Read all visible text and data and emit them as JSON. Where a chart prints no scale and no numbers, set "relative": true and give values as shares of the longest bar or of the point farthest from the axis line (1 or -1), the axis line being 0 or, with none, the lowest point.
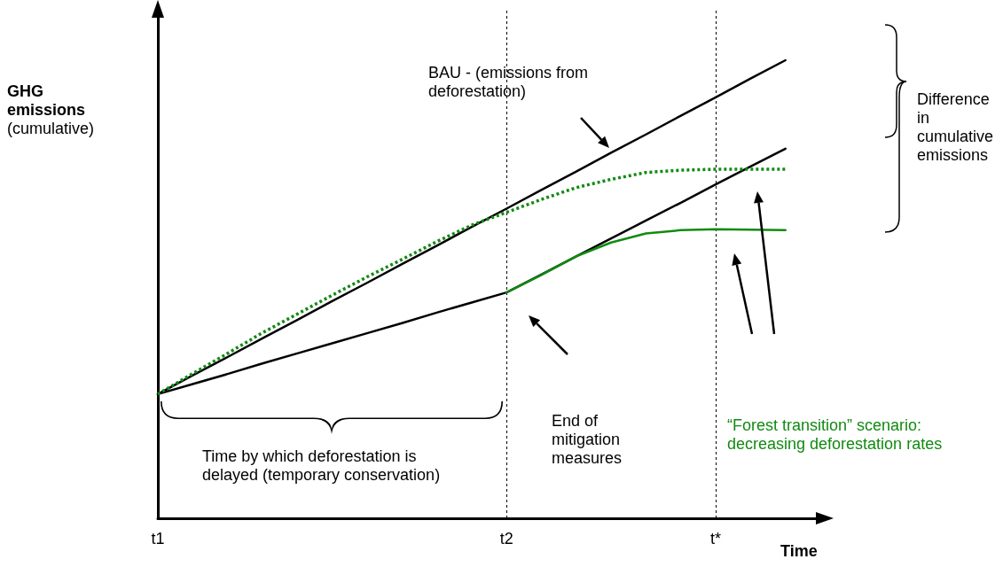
{
  "chart_data": {
    "type": "line",
    "relative": true,
    "xlabel": "Time",
    "ylabel": "GHG emissions (cumulative)",
    "categories": [
      "t1",
      null,
      null,
      null,
      null,
      null,
      null,
      null,
      null,
      null,
      "t2",
      null,
      null,
      null,
      null,
      null,
      "t*",
      null,
      null,
      null
    ],
    "marker": "none",
    "series": [
      {
        "name": "BAU - (emissions from deforestation)",
        "color": "#000000",
        "values": [
          0.271,
          0.312,
          0.352,
          0.393,
          0.433,
          0.474,
          0.514,
          0.555,
          0.595,
          0.636,
          0.676,
          0.717,
          0.757,
          0.798,
          0.838,
          0.879,
          0.919,
          0.96,
          1.0,
          null
        ]
      },
      {
        "color": "#000000",
        "values": [
          0.271,
          0.293,
          0.315,
          0.338,
          0.36,
          0.382,
          0.404,
          0.426,
          0.449,
          0.471,
          0.493,
          0.532,
          0.572,
          0.611,
          0.65,
          0.689,
          0.729,
          0.768,
          0.807,
          null
        ]
      },
      {
        "color": "#128a12",
        "line_style": "dotted",
        "values": [
          0.271,
          0.316,
          0.36,
          0.405,
          0.446,
          0.487,
          0.527,
          0.565,
          0.604,
          0.64,
          0.668,
          0.696,
          0.722,
          0.74,
          0.755,
          0.76,
          0.762,
          0.762,
          0.762,
          null
        ]
      },
      {
        "name": "“Forest transition” scenario: decreasing deforestation rates",
        "color": "#128a12",
        "values": [
          null,
          null,
          null,
          null,
          null,
          null,
          null,
          null,
          null,
          null,
          0.493,
          0.531,
          0.572,
          0.602,
          0.622,
          0.629,
          0.631,
          0.63,
          0.629,
          null
        ]
      }
    ],
    "ref_lines": [
      {
        "axis": "x",
        "value": "t2",
        "color": "#000000",
        "line_style": "dotted"
      },
      {
        "axis": "x",
        "value": "t*",
        "color": "#000000",
        "line_style": "dotted"
      }
    ],
    "annotations": [
      "End of mitigation measures",
      "Time by which deforestation is delayed (temporary conservation)",
      "Difference in cumulative emissions"
    ]
  }
}
